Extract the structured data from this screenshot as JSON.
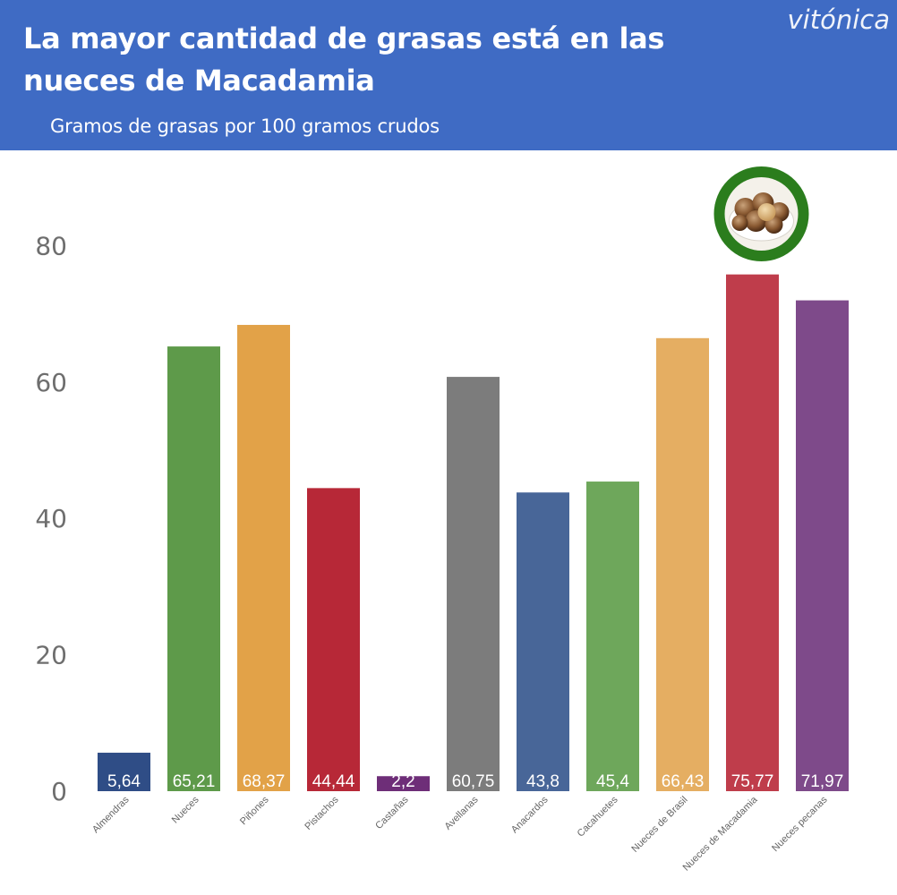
{
  "header": {
    "title": "La mayor cantidad de grasas está en las nueces de Macadamia",
    "subtitle": "Gramos de grasas por 100 gramos crudos",
    "brand": "vitónica",
    "background": "#3f6bc4"
  },
  "highlight": {
    "category": "Nueces de Macadamia",
    "icon": "macadamia-nuts-bowl-icon",
    "ring_color": "#2b7d1d"
  },
  "chart_data": {
    "type": "bar",
    "categories": [
      "Almendras",
      "Nueces",
      "Piñones",
      "Pistachos",
      "Castañas",
      "Avellanas",
      "Anacardos",
      "Cacahuetes",
      "Nueces de Brasil",
      "Nueces de Macadamia",
      "Nueces pecanas"
    ],
    "values": [
      5.64,
      65.21,
      68.37,
      44.44,
      2.2,
      60.75,
      43.8,
      45.4,
      66.43,
      75.77,
      71.97
    ],
    "value_labels": [
      "5,64",
      "65,21",
      "68,37",
      "44,44",
      "2,2",
      "60,75",
      "43,8",
      "45,4",
      "66,43",
      "75,77",
      "71,97"
    ],
    "colors": [
      "#2f4d86",
      "#5e9a4a",
      "#e2a248",
      "#b72837",
      "#6e2e78",
      "#7c7c7c",
      "#486698",
      "#6ea75b",
      "#e5ae62",
      "#bf3d4b",
      "#7e4a8a"
    ],
    "title": "La mayor cantidad de grasas está en las nueces de Macadamia",
    "subtitle": "Gramos de grasas por 100 gramos crudos",
    "y_ticks": [
      0,
      20,
      40,
      60,
      80
    ],
    "ylim": [
      0,
      90
    ],
    "grid": false,
    "legend": "none"
  }
}
